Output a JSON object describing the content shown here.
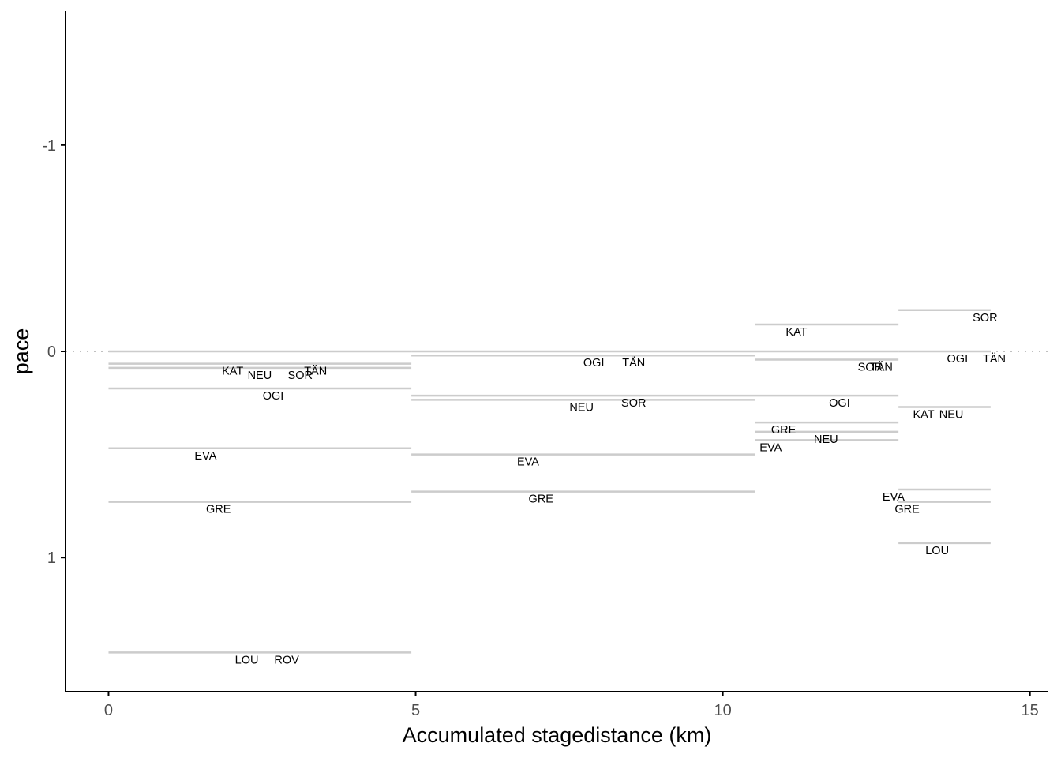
{
  "chart_data": {
    "type": "segment",
    "xlabel": "Accumulated stagedistance (km)",
    "ylabel": "pace",
    "xlim": [
      -0.7,
      15.3
    ],
    "ylim": [
      -1.65,
      1.65
    ],
    "y_reversed": true,
    "x_ticks": [
      0,
      5,
      10,
      15
    ],
    "y_ticks": [
      -1,
      0,
      1
    ],
    "x_tick_labels": [
      "0",
      "5",
      "10",
      "15"
    ],
    "y_tick_labels": [
      "-1",
      "0",
      "1"
    ],
    "grid": false,
    "reference_line": {
      "y": 0,
      "style": "dotted"
    },
    "colors": {
      "segment": "#cccccc",
      "reference": "#c0c0c0",
      "axis": "#000000",
      "text": "#000000",
      "tick_text": "#4d4d4d"
    },
    "stages": [
      {
        "x_start": 0.0,
        "x_end": 4.93
      },
      {
        "x_start": 4.93,
        "x_end": 10.53
      },
      {
        "x_start": 10.53,
        "x_end": 12.86
      },
      {
        "x_start": 12.86,
        "x_end": 14.36
      }
    ],
    "segments": [
      {
        "stage": 1,
        "pace": 0.0,
        "labels": []
      },
      {
        "stage": 1,
        "pace": 0.06,
        "labels": [
          {
            "text": "KAT",
            "x": 2.02
          },
          {
            "text": "TÄN",
            "x": 3.37
          }
        ]
      },
      {
        "stage": 1,
        "pace": 0.08,
        "labels": [
          {
            "text": "NEU",
            "x": 2.46
          },
          {
            "text": "SOR",
            "x": 3.12
          }
        ]
      },
      {
        "stage": 1,
        "pace": 0.18,
        "labels": [
          {
            "text": "OGI",
            "x": 2.68
          }
        ]
      },
      {
        "stage": 1,
        "pace": 0.47,
        "labels": [
          {
            "text": "EVA",
            "x": 1.58
          }
        ]
      },
      {
        "stage": 1,
        "pace": 0.73,
        "labels": [
          {
            "text": "GRE",
            "x": 1.79
          }
        ]
      },
      {
        "stage": 1,
        "pace": 1.46,
        "labels": [
          {
            "text": "LOU",
            "x": 2.25
          },
          {
            "text": "ROV",
            "x": 2.9
          }
        ]
      },
      {
        "stage": 2,
        "pace": 0.0,
        "labels": []
      },
      {
        "stage": 2,
        "pace": 0.02,
        "labels": [
          {
            "text": "OGI",
            "x": 7.9
          },
          {
            "text": "TÄN",
            "x": 8.55
          }
        ]
      },
      {
        "stage": 2,
        "pace": 0.215,
        "labels": [
          {
            "text": "SOR",
            "x": 8.55
          }
        ]
      },
      {
        "stage": 2,
        "pace": 0.235,
        "labels": [
          {
            "text": "NEU",
            "x": 7.7
          }
        ]
      },
      {
        "stage": 2,
        "pace": 0.5,
        "labels": [
          {
            "text": "EVA",
            "x": 6.83
          }
        ]
      },
      {
        "stage": 2,
        "pace": 0.68,
        "labels": [
          {
            "text": "GRE",
            "x": 7.04
          }
        ]
      },
      {
        "stage": 3,
        "pace": -0.13,
        "labels": [
          {
            "text": "KAT",
            "x": 11.2
          }
        ]
      },
      {
        "stage": 3,
        "pace": 0.0,
        "labels": []
      },
      {
        "stage": 3,
        "pace": 0.04,
        "labels": [
          {
            "text": "TÄN",
            "x": 12.58
          },
          {
            "text": "SOR",
            "x": 12.4
          }
        ]
      },
      {
        "stage": 3,
        "pace": 0.215,
        "labels": [
          {
            "text": "OGI",
            "x": 11.9
          }
        ]
      },
      {
        "stage": 3,
        "pace": 0.345,
        "labels": [
          {
            "text": "GRE",
            "x": 10.99
          }
        ]
      },
      {
        "stage": 3,
        "pace": 0.39,
        "labels": [
          {
            "text": "NEU",
            "x": 11.68
          }
        ]
      },
      {
        "stage": 3,
        "pace": 0.43,
        "labels": [
          {
            "text": "EVA",
            "x": 10.78
          }
        ]
      },
      {
        "stage": 4,
        "pace": -0.2,
        "labels": [
          {
            "text": "SOR",
            "x": 14.27
          }
        ]
      },
      {
        "stage": 4,
        "pace": 0.0,
        "labels": [
          {
            "text": "OGI",
            "x": 13.82
          },
          {
            "text": "TÄN",
            "x": 14.42
          }
        ]
      },
      {
        "stage": 4,
        "pace": 0.27,
        "labels": [
          {
            "text": "KAT",
            "x": 13.27
          },
          {
            "text": "NEU",
            "x": 13.72
          }
        ]
      },
      {
        "stage": 4,
        "pace": 0.67,
        "labels": [
          {
            "text": "EVA",
            "x": 12.78
          }
        ]
      },
      {
        "stage": 4,
        "pace": 0.73,
        "labels": [
          {
            "text": "GRE",
            "x": 13.0
          }
        ]
      },
      {
        "stage": 4,
        "pace": 0.93,
        "labels": [
          {
            "text": "LOU",
            "x": 13.49
          }
        ]
      }
    ]
  }
}
